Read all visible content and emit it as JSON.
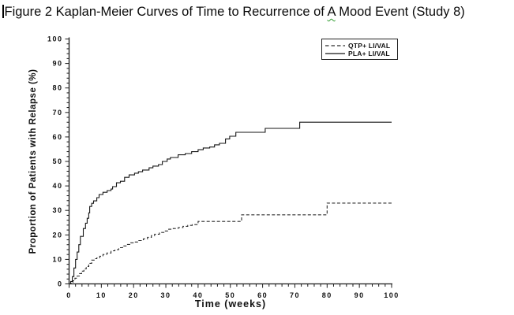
{
  "title": {
    "prefix": "Figure 2 Kaplan-Meier Curves of Time to Recurrence of ",
    "flagged_word": "A",
    "suffix": " Mood Event (Study 8)",
    "spellcheck_underline_color": "#2e9b2e"
  },
  "chart_data": {
    "type": "line",
    "subtype": "kaplan-meier-step",
    "title": "",
    "xlabel": "Time (weeks)",
    "ylabel": "Proportion of Patients with Relapse (%)",
    "xlim": [
      0,
      100
    ],
    "ylim": [
      0,
      100
    ],
    "x_major_ticks": [
      0,
      10,
      20,
      30,
      40,
      50,
      60,
      70,
      80,
      90,
      100
    ],
    "y_major_ticks": [
      0,
      10,
      20,
      30,
      40,
      50,
      60,
      70,
      80,
      90,
      100
    ],
    "x_minor_step": 2,
    "y_minor_step": 2,
    "grid": false,
    "axis_color": "#1a1a1a",
    "legend": {
      "position": "top-right",
      "border": true
    },
    "series": [
      {
        "name": "QTP+ LI/VAL",
        "style": "dashed",
        "color": "#2b2b2b",
        "points": [
          [
            0,
            0
          ],
          [
            0.7,
            0.6
          ],
          [
            1.2,
            1.3
          ],
          [
            1.8,
            2.3
          ],
          [
            2.5,
            3.2
          ],
          [
            3.2,
            4.2
          ],
          [
            3.9,
            5.2
          ],
          [
            4.6,
            6.1
          ],
          [
            5.3,
            7.1
          ],
          [
            6.1,
            8.4
          ],
          [
            7,
            9.7
          ],
          [
            8,
            10.3
          ],
          [
            8.6,
            10.6
          ],
          [
            9.5,
            11.3
          ],
          [
            10.5,
            12
          ],
          [
            11.7,
            12.6
          ],
          [
            13,
            13.5
          ],
          [
            14.2,
            14
          ],
          [
            15.4,
            14.8
          ],
          [
            16.6,
            15.5
          ],
          [
            17.9,
            16.1
          ],
          [
            19.1,
            16.8
          ],
          [
            20.3,
            17.1
          ],
          [
            21.6,
            17.7
          ],
          [
            23,
            18.4
          ],
          [
            24.3,
            19
          ],
          [
            25.5,
            19.7
          ],
          [
            26.5,
            20.3
          ],
          [
            28,
            21
          ],
          [
            29.4,
            21.6
          ],
          [
            30.9,
            22.3
          ],
          [
            32.3,
            22.6
          ],
          [
            33.8,
            23
          ],
          [
            35.3,
            23.5
          ],
          [
            36.8,
            23.9
          ],
          [
            38.2,
            24.2
          ],
          [
            40,
            25.5
          ],
          [
            53.5,
            28.2
          ],
          [
            80,
            33
          ],
          [
            100,
            33
          ]
        ]
      },
      {
        "name": "PLA+ LI/VAL",
        "style": "solid",
        "color": "#161616",
        "points": [
          [
            0,
            0
          ],
          [
            0.5,
            1
          ],
          [
            1,
            3
          ],
          [
            1.5,
            6.5
          ],
          [
            2,
            10
          ],
          [
            2.5,
            13
          ],
          [
            3,
            16
          ],
          [
            3.5,
            19.4
          ],
          [
            4.4,
            22.6
          ],
          [
            5.1,
            24.8
          ],
          [
            5.6,
            26.8
          ],
          [
            6.1,
            29
          ],
          [
            6.4,
            31.6
          ],
          [
            7,
            32.9
          ],
          [
            7.6,
            33.9
          ],
          [
            8.6,
            35.2
          ],
          [
            9.3,
            36.5
          ],
          [
            10.5,
            37.4
          ],
          [
            11.8,
            38.1
          ],
          [
            13,
            38.7
          ],
          [
            13.5,
            39.7
          ],
          [
            14.7,
            41.3
          ],
          [
            15.9,
            41.9
          ],
          [
            17.2,
            43.5
          ],
          [
            18.6,
            44.5
          ],
          [
            20.3,
            45.2
          ],
          [
            21.5,
            45.8
          ],
          [
            22.8,
            46.5
          ],
          [
            24.8,
            47.4
          ],
          [
            26,
            48.1
          ],
          [
            27.7,
            48.7
          ],
          [
            28.9,
            50
          ],
          [
            30.4,
            51
          ],
          [
            31.4,
            51.6
          ],
          [
            33.8,
            52.7
          ],
          [
            36,
            53.2
          ],
          [
            38,
            54
          ],
          [
            40,
            54.8
          ],
          [
            41.6,
            55.5
          ],
          [
            43.6,
            55.9
          ],
          [
            45.1,
            56.8
          ],
          [
            46.6,
            57.4
          ],
          [
            48.5,
            59.2
          ],
          [
            49.8,
            60.3
          ],
          [
            51.7,
            61.9
          ],
          [
            60.8,
            63.5
          ],
          [
            71.5,
            66
          ],
          [
            100,
            66
          ]
        ]
      }
    ]
  }
}
